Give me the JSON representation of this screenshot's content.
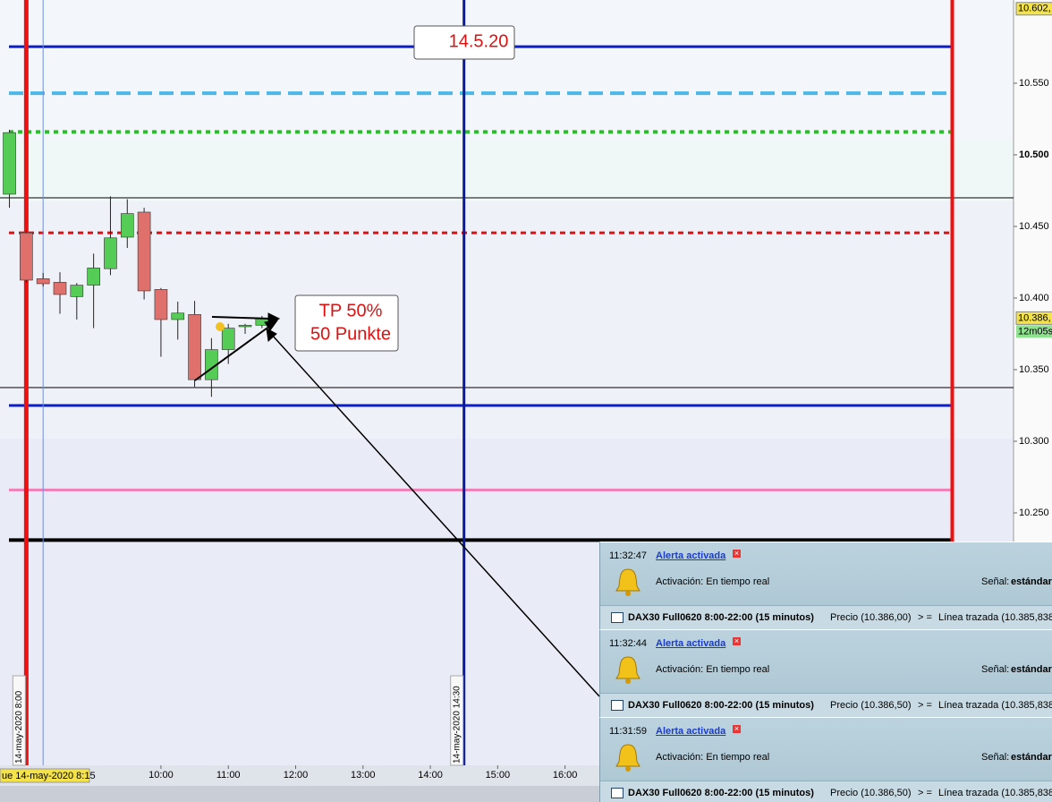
{
  "chart_data": {
    "type": "candlestick",
    "x": [
      7.75,
      8,
      8.25,
      8.5,
      8.75,
      9,
      9.25,
      9.5,
      9.75,
      10,
      10.25,
      10.5,
      10.75,
      11,
      11.25,
      11.5
    ],
    "open": [
      10472.5,
      10445.5,
      10413.5,
      10411,
      10401,
      10409,
      10420.5,
      10442.5,
      10460,
      10406,
      10385,
      10388.5,
      10343,
      10364,
      10380,
      10381
    ],
    "high": [
      10517.5,
      10447,
      10417.5,
      10418,
      10410.5,
      10431,
      10471,
      10469,
      10463,
      10407,
      10397.5,
      10398,
      10372,
      10382,
      10382,
      10387.5
    ],
    "low": [
      10463,
      10410.5,
      10408,
      10389,
      10385,
      10379,
      10416,
      10435,
      10399,
      10359,
      10371,
      10338,
      10331,
      10354,
      10375,
      10379
    ],
    "close": [
      10515.5,
      10412.5,
      10410,
      10402.5,
      10409,
      10421,
      10442,
      10459,
      10405,
      10385,
      10389.5,
      10343,
      10364,
      10379,
      10381,
      10386
    ],
    "up_color": "#55cc55",
    "down_color": "#e0706c",
    "ylim": [
      10073.75,
      10608.1
    ],
    "yticks": [
      {
        "value": 10250,
        "label": "10.250"
      },
      {
        "value": 10300,
        "label": "10.300"
      },
      {
        "value": 10350,
        "label": "10.350"
      },
      {
        "value": 10400,
        "label": "10.400"
      },
      {
        "value": 10450,
        "label": "10.450"
      },
      {
        "value": 10500,
        "label": "10.500"
      },
      {
        "value": 10550,
        "label": "10.550"
      }
    ],
    "xlim": [
      7.61,
      22.66
    ],
    "xticks": [
      {
        "value": 10,
        "label": "10:00"
      },
      {
        "value": 11,
        "label": "11:00"
      },
      {
        "value": 12,
        "label": "12:00"
      },
      {
        "value": 13,
        "label": "13:00"
      },
      {
        "value": 14,
        "label": "14:00"
      },
      {
        "value": 15,
        "label": "15:00"
      },
      {
        "value": 16,
        "label": "16:00"
      }
    ],
    "hlines": [
      {
        "value": 10575.5,
        "color": "#0a1fc8",
        "width": 3,
        "dash": "none"
      },
      {
        "value": 10543,
        "color": "#4cb8ea",
        "width": 4,
        "dash": "16 8"
      },
      {
        "value": 10516,
        "color": "#33b833",
        "width": 4,
        "dash": "5 5"
      },
      {
        "value": 10470,
        "color": "#000000",
        "width": 1,
        "dash": "none"
      },
      {
        "value": 10445.5,
        "color": "#dd1111",
        "width": 3,
        "dash": "6 5"
      },
      {
        "value": 10337.5,
        "color": "#000000",
        "width": 1,
        "dash": "none"
      },
      {
        "value": 10325,
        "color": "#0a1fc8",
        "width": 3,
        "dash": "none"
      },
      {
        "value": 10266,
        "color": "#f07fb8",
        "width": 3,
        "dash": "none"
      },
      {
        "value": 10231,
        "color": "#000000",
        "width": 4,
        "dash": "none"
      }
    ],
    "vlines": [
      {
        "value": 8,
        "color": "#ee1111",
        "width": 5,
        "label": "14-may-2020 8:00"
      },
      {
        "value": 8.25,
        "color": "#6e8fe0",
        "width": 1,
        "label": "ue 14-may-2020 8:15"
      },
      {
        "value": 14.5,
        "color": "#0a1a9c",
        "width": 3,
        "label": "14-may-2020 14:30"
      },
      {
        "value": 21.75,
        "color": "#ee1111",
        "width": 4
      }
    ],
    "price_markers": [
      {
        "value": 10602,
        "label": "10.602,"
      },
      {
        "value": 10386,
        "label": "10.386,"
      }
    ],
    "countdown": "12m05s",
    "annotations": [
      "14.5.20",
      "TP 50%",
      "50 Punkte"
    ]
  },
  "alerts": [
    {
      "time": "11:32:47",
      "title": "Alerta activada",
      "activation": "Activación: En tiempo real",
      "signal_label": "Señal:",
      "signal": "estándar",
      "instrument": "DAX30 Full0620 8:00-22:00 (15 minutos)",
      "price": "Precio (10.386,00)",
      "operator": "> =",
      "line": "Línea trazada (10.385,838"
    },
    {
      "time": "11:32:44",
      "title": "Alerta activada",
      "activation": "Activación: En tiempo real",
      "signal_label": "Señal:",
      "signal": "estándar",
      "instrument": "DAX30 Full0620 8:00-22:00 (15 minutos)",
      "price": "Precio (10.386,50)",
      "operator": "> =",
      "line": "Línea trazada (10.385,838"
    },
    {
      "time": "11:31:59",
      "title": "Alerta activada",
      "activation": "Activación: En tiempo real",
      "signal_label": "Señal:",
      "signal": "estándar",
      "instrument": "DAX30 Full0620 8:00-22:00 (15 minutos)",
      "price": "Precio (10.386,50)",
      "operator": "> =",
      "line": "Línea trazada (10.385,838"
    }
  ]
}
